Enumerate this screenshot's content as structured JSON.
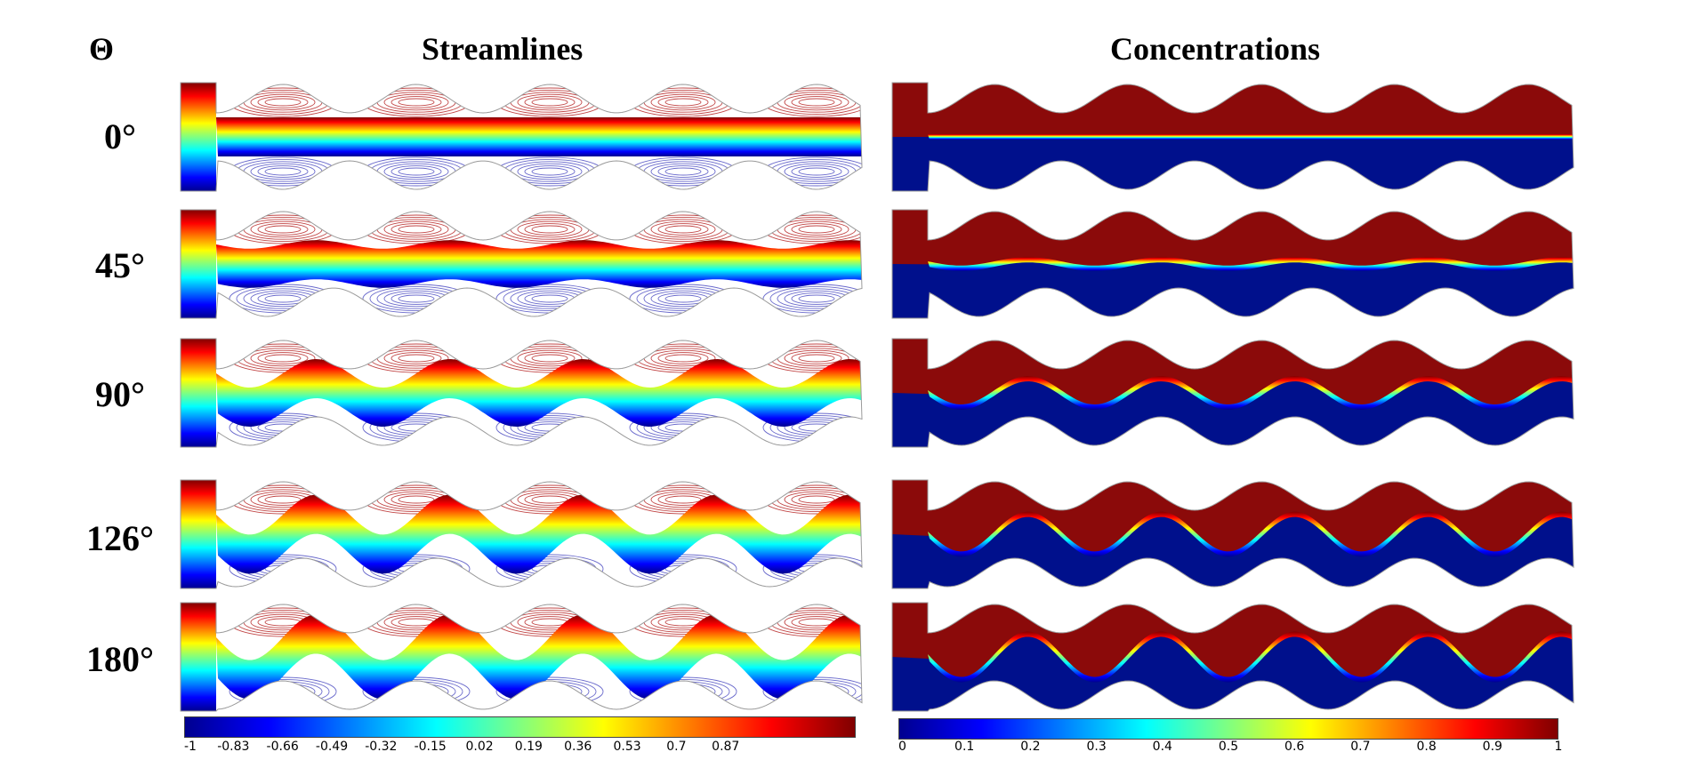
{
  "header": {
    "theta_symbol": "Θ",
    "streamlines_title": "Streamlines",
    "concentrations_title": "Concentrations"
  },
  "rows": [
    {
      "angle_label": "0°",
      "angle": 0
    },
    {
      "angle_label": "45°",
      "angle": 45
    },
    {
      "angle_label": "90°",
      "angle": 90
    },
    {
      "angle_label": "126°",
      "angle": 126
    },
    {
      "angle_label": "180°",
      "angle": 180
    }
  ],
  "streamline_colorbar": {
    "colormap": "jet",
    "ticks": [
      "-1",
      "-0.83",
      "-0.66",
      "-0.49",
      "-0.32",
      "-0.15",
      "0.02",
      "0.19",
      "0.36",
      "0.53",
      "0.7",
      "0.87"
    ]
  },
  "concentration_colorbar": {
    "colormap": "jet",
    "ticks": [
      "0",
      "0.1",
      "0.2",
      "0.3",
      "0.4",
      "0.5",
      "0.6",
      "0.7",
      "0.8",
      "0.9",
      "1"
    ]
  },
  "colors": {
    "jet_stops": [
      "#00008f",
      "#0000ff",
      "#0080ff",
      "#00ffff",
      "#80ff80",
      "#ffff00",
      "#ff8000",
      "#ff0000",
      "#800000"
    ],
    "upper_fluid": "#8b0a0a",
    "lower_fluid": "#00108c",
    "vortex_upper": "#c24848",
    "vortex_lower": "#6b6bcc"
  }
}
